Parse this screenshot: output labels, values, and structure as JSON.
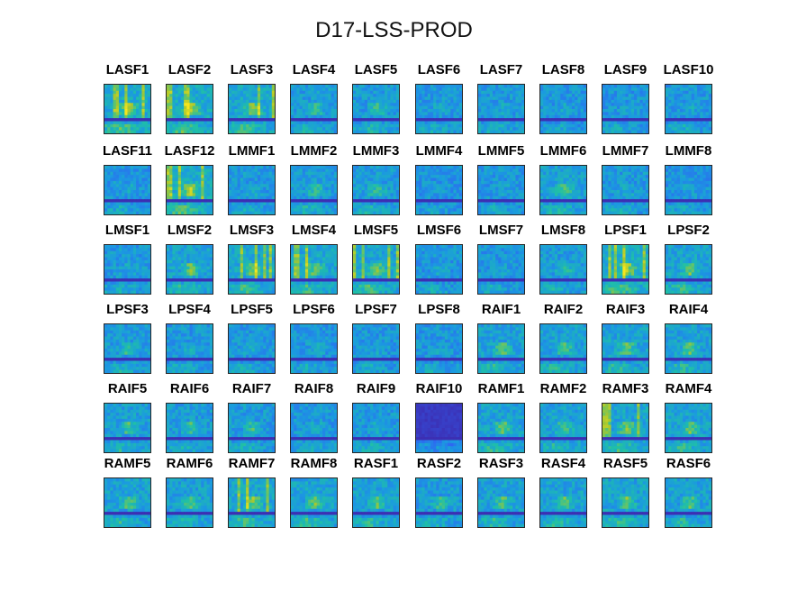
{
  "title": "D17-LSS-PROD",
  "colormap": [
    "#3e26a8",
    "#2f63f3",
    "#1b9ae0",
    "#1fc0a6",
    "#a6c72f",
    "#f7e51d"
  ],
  "chart_data": {
    "type": "heatmap",
    "title": "D17-LSS-PROD",
    "layout": {
      "rows": 6,
      "cols": 10
    },
    "xlabel": "",
    "ylabel": "",
    "panels": [
      {
        "label": "LASF1",
        "intensity": 0.9
      },
      {
        "label": "LASF2",
        "intensity": 0.9
      },
      {
        "label": "LASF3",
        "intensity": 0.85
      },
      {
        "label": "LASF4",
        "intensity": 0.6
      },
      {
        "label": "LASF5",
        "intensity": 0.6
      },
      {
        "label": "LASF6",
        "intensity": 0.55
      },
      {
        "label": "LASF7",
        "intensity": 0.55
      },
      {
        "label": "LASF8",
        "intensity": 0.5
      },
      {
        "label": "LASF9",
        "intensity": 0.5
      },
      {
        "label": "LASF10",
        "intensity": 0.55
      },
      {
        "label": "LASF11",
        "intensity": 0.5
      },
      {
        "label": "LASF12",
        "intensity": 0.95
      },
      {
        "label": "LMMF1",
        "intensity": 0.55
      },
      {
        "label": "LMMF2",
        "intensity": 0.6
      },
      {
        "label": "LMMF3",
        "intensity": 0.6
      },
      {
        "label": "LMMF4",
        "intensity": 0.45
      },
      {
        "label": "LMMF5",
        "intensity": 0.5
      },
      {
        "label": "LMMF6",
        "intensity": 0.7
      },
      {
        "label": "LMMF7",
        "intensity": 0.55
      },
      {
        "label": "LMMF8",
        "intensity": 0.45
      },
      {
        "label": "LMSF1",
        "intensity": 0.55
      },
      {
        "label": "LMSF2",
        "intensity": 0.75
      },
      {
        "label": "LMSF3",
        "intensity": 0.8
      },
      {
        "label": "LMSF4",
        "intensity": 0.8
      },
      {
        "label": "LMSF5",
        "intensity": 0.8
      },
      {
        "label": "LMSF6",
        "intensity": 0.5
      },
      {
        "label": "LMSF7",
        "intensity": 0.5
      },
      {
        "label": "LMSF8",
        "intensity": 0.6
      },
      {
        "label": "LPSF1",
        "intensity": 0.95
      },
      {
        "label": "LPSF2",
        "intensity": 0.75
      },
      {
        "label": "LPSF3",
        "intensity": 0.6
      },
      {
        "label": "LPSF4",
        "intensity": 0.55
      },
      {
        "label": "LPSF5",
        "intensity": 0.55
      },
      {
        "label": "LPSF6",
        "intensity": 0.5
      },
      {
        "label": "LPSF7",
        "intensity": 0.5
      },
      {
        "label": "LPSF8",
        "intensity": 0.5
      },
      {
        "label": "RAIF1",
        "intensity": 0.7
      },
      {
        "label": "RAIF2",
        "intensity": 0.7
      },
      {
        "label": "RAIF3",
        "intensity": 0.75
      },
      {
        "label": "RAIF4",
        "intensity": 0.7
      },
      {
        "label": "RAIF5",
        "intensity": 0.65
      },
      {
        "label": "RAIF6",
        "intensity": 0.6
      },
      {
        "label": "RAIF7",
        "intensity": 0.6
      },
      {
        "label": "RAIF8",
        "intensity": 0.55
      },
      {
        "label": "RAIF9",
        "intensity": 0.55
      },
      {
        "label": "RAIF10",
        "intensity": 0.2
      },
      {
        "label": "RAMF1",
        "intensity": 0.75
      },
      {
        "label": "RAMF2",
        "intensity": 0.7
      },
      {
        "label": "RAMF3",
        "intensity": 0.8
      },
      {
        "label": "RAMF4",
        "intensity": 0.75
      },
      {
        "label": "RAMF5",
        "intensity": 0.7
      },
      {
        "label": "RAMF6",
        "intensity": 0.7
      },
      {
        "label": "RAMF7",
        "intensity": 0.8
      },
      {
        "label": "RAMF8",
        "intensity": 0.75
      },
      {
        "label": "RASF1",
        "intensity": 0.7
      },
      {
        "label": "RASF2",
        "intensity": 0.6
      },
      {
        "label": "RASF3",
        "intensity": 0.7
      },
      {
        "label": "RASF4",
        "intensity": 0.7
      },
      {
        "label": "RASF5",
        "intensity": 0.75
      },
      {
        "label": "RASF6",
        "intensity": 0.7
      }
    ]
  }
}
